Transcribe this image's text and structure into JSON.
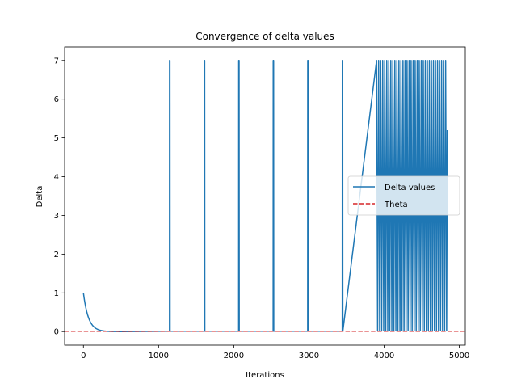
{
  "chart_data": {
    "type": "line",
    "title": "Convergence of delta values",
    "xlabel": "Iterations",
    "ylabel": "Delta",
    "xlim": [
      -250,
      5080
    ],
    "ylim": [
      -0.35,
      7.35
    ],
    "xticks": [
      0,
      1000,
      2000,
      3000,
      4000,
      5000
    ],
    "yticks": [
      0,
      1,
      2,
      3,
      4,
      5,
      6,
      7
    ],
    "grid": false,
    "legend_position": "center-right",
    "series": [
      {
        "name": "Delta values",
        "color": "#1f77b4",
        "style": "solid",
        "decay": {
          "start": 1.0,
          "rate": 0.015,
          "x_end": 500
        },
        "spikes_x": [
          1148,
          1610,
          2068,
          2527,
          2986,
          3446
        ],
        "spike_height": 7,
        "oscillation": {
          "x_start": 3900,
          "x_end": 4840,
          "high": 7,
          "low": 0.02,
          "period": 27
        },
        "tail_value": 5.2
      },
      {
        "name": "Theta",
        "color": "#d62728",
        "style": "dashed",
        "y": 0.01
      }
    ]
  }
}
